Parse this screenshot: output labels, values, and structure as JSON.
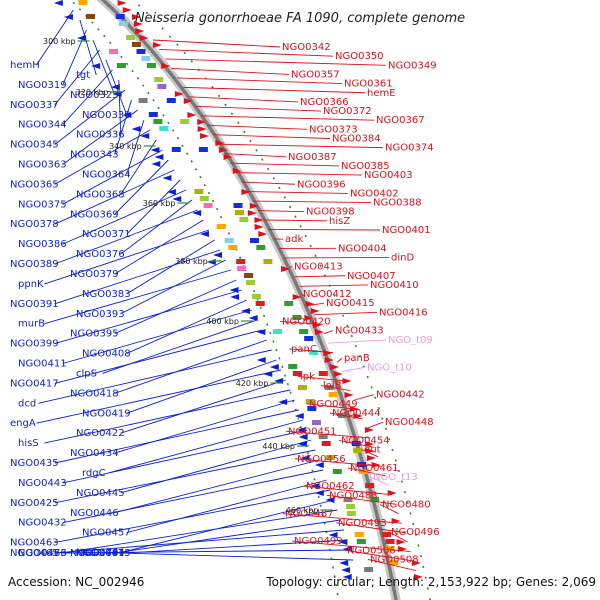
{
  "title": "Neisseria gonorrhoeae FA 1090, complete genome",
  "footer": {
    "accession": "Accession: NC_002946",
    "summary": "Topology: circular; Length: 2,153,922 bp; Genes: 2,069"
  },
  "colors": {
    "minus_strand": "#0b1fd6",
    "plus_strand": "#e0101a",
    "trna": "#f29ad6",
    "backbone": "#8c8c8c",
    "tick": "#2e8b2e"
  },
  "scale_labels": [
    "300 kbp",
    "320 kbp",
    "340 kbp",
    "360 kbp",
    "380 kbp",
    "400 kbp",
    "420 kbp",
    "440 kbp",
    "460 kbp"
  ],
  "left_labels": [
    "hemH",
    "tgt",
    "NGO0319",
    "NGO0323",
    "NGO0337",
    "NGO0330",
    "NGO0344",
    "NGO0336",
    "NGO0345",
    "NGO0343",
    "NGO0363",
    "NGO0364",
    "NGO0365",
    "NGO0368",
    "NGO0375",
    "NGO0369",
    "NGO0378",
    "NGO0371",
    "NGO0386",
    "NGO0376",
    "NGO0389",
    "NGO0379",
    "ppnK",
    "NGO0383",
    "NGO0391",
    "NGO0393",
    "murB",
    "NGO0395",
    "NGO0399",
    "NGO0408",
    "NGO0411",
    "clpS",
    "NGO0417",
    "NGO0418",
    "dcd",
    "NGO0419",
    "engA",
    "NGO0422",
    "hisS",
    "NGO0434",
    "NGO0435",
    "rdgC",
    "NGO0443",
    "NGO0445",
    "NGO0425",
    "NGO0446",
    "NGO0432",
    "NGO0457",
    "NGO0463",
    "NGO0464",
    "NGO0473",
    "NGO0479",
    "NGO0465",
    "NGO0475",
    "NGO0466",
    "NGO0481"
  ],
  "right_labels": [
    "NGO0342",
    "NGO0350",
    "NGO0349",
    "NGO0357",
    "NGO0361",
    "hemE",
    "NGO0366",
    "NGO0372",
    "NGO0367",
    "NGO0373",
    "NGO0384",
    "NGO0374",
    "NGO0387",
    "NGO0385",
    "NGO0403",
    "NGO0396",
    "NGO0402",
    "NGO0388",
    "NGO0398",
    "hisZ",
    "NGO0401",
    "adk",
    "NGO0404",
    "dinD",
    "NGO0413",
    "NGO0407",
    "NGO0410",
    "NGO0412",
    "NGO0415",
    "NGO0416",
    "NGO0420",
    "NGO0433",
    "NGO_t09",
    "panC",
    "panB",
    "NGO_t10",
    "ipk",
    "lolB",
    "NGO0442",
    "NGO0449",
    "NGO0444",
    "NGO0448",
    "NGO0451",
    "NGO0454",
    "dut",
    "NGO0456",
    "NGO0461",
    "NGO_t13",
    "NGO0462",
    "NGO0483",
    "NGO0480",
    "NGO0487",
    "NGO0493",
    "NGO0496",
    "NGO0499",
    "NGO0506",
    "NGO0508"
  ]
}
